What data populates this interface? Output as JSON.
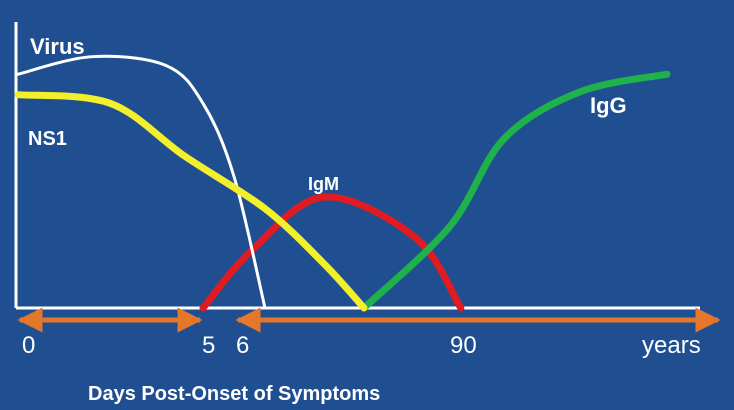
{
  "chart_data": {
    "type": "line",
    "title": "",
    "xlabel": "Days Post-Onset of Symptoms",
    "ylabel": "",
    "x_ticks": [
      {
        "label": "0"
      },
      {
        "label": "5"
      },
      {
        "label": "6"
      },
      {
        "label": "90"
      },
      {
        "label": "years"
      }
    ],
    "grid": false,
    "colors": {
      "background": "#1f4f91",
      "axis": "#ffffff",
      "arrow": "#e4772a",
      "text": "#ffffff"
    },
    "series": [
      {
        "name": "Virus",
        "color": "#ffffff",
        "points": [
          [
            0,
            0.8
          ],
          [
            2,
            0.86
          ],
          [
            4,
            0.83
          ],
          [
            5,
            0.7
          ],
          [
            5.5,
            0.45
          ],
          [
            6,
            0.0
          ]
        ]
      },
      {
        "name": "NS1",
        "color": "#f3ef2a",
        "points": [
          [
            0,
            0.73
          ],
          [
            2.5,
            0.7
          ],
          [
            4.5,
            0.52
          ],
          [
            6,
            0.34
          ],
          [
            7.2,
            0.15
          ],
          [
            8,
            0.0
          ]
        ]
      },
      {
        "name": "IgM",
        "color": "#e21b22",
        "points": [
          [
            5,
            0.0
          ],
          [
            5.8,
            0.2
          ],
          [
            7.2,
            0.38
          ],
          [
            8.6,
            0.24
          ],
          [
            9.2,
            0.0
          ]
        ]
      },
      {
        "name": "IgG",
        "color": "#1fb24a",
        "points": [
          [
            8,
            0.0
          ],
          [
            9,
            0.28
          ],
          [
            10,
            0.58
          ],
          [
            11.4,
            0.74
          ],
          [
            13,
            0.8
          ]
        ]
      }
    ]
  }
}
